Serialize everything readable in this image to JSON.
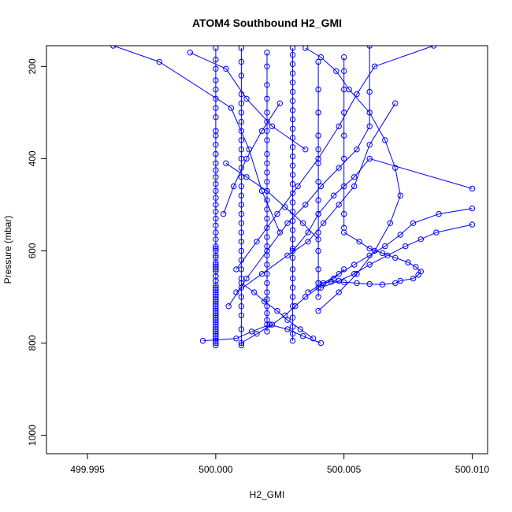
{
  "chart_data": {
    "type": "line",
    "title": "ATOM4 Southbound H2_GMI",
    "xlabel": "H2_GMI",
    "ylabel": "Pressure (mbar)",
    "xlim": [
      499.9934,
      500.0106
    ],
    "ylim": [
      1040,
      155
    ],
    "y_inverted": true,
    "xticks": [
      499.995,
      500.0,
      500.005,
      500.01
    ],
    "xtick_labels": [
      "499.995",
      "500.000",
      "500.005",
      "500.010"
    ],
    "yticks": [
      200,
      400,
      600,
      800,
      1000
    ],
    "ytick_labels": [
      "200",
      "400",
      "600",
      "800",
      "1000"
    ],
    "grid": false,
    "series_color": "#0000ff",
    "marker": "open-circle",
    "series": [
      {
        "x": [
          500.0,
          500.0,
          500.0,
          500.0,
          500.0,
          500.0,
          500.0,
          500.0,
          500.0,
          500.0,
          500.0,
          500.0,
          500.0,
          500.0,
          500.0,
          500.0,
          500.0,
          500.0,
          500.0,
          500.0,
          500.0,
          500.0,
          500.0,
          500.0,
          500.0,
          500.0,
          500.0,
          500.0,
          500.0,
          500.0,
          500.0,
          500.0,
          500.0,
          500.0,
          500.0,
          500.0,
          500.0,
          500.0,
          500.0,
          500.0,
          500.0,
          500.0,
          500.0,
          500.0,
          500.0,
          500.0,
          500.0,
          500.0,
          500.0,
          500.0,
          500.0,
          500.0,
          500.0,
          500.0,
          500.0,
          500.0,
          500.0,
          500.0,
          500.0,
          500.0,
          500.0,
          500.0,
          500.0,
          500.0,
          500.0
        ],
        "y": [
          160,
          185,
          205,
          230,
          250,
          270,
          290,
          310,
          340,
          350,
          370,
          390,
          410,
          425,
          440,
          455,
          470,
          485,
          500,
          515,
          530,
          545,
          560,
          575,
          590,
          600,
          615,
          630,
          640,
          655,
          665,
          680,
          690,
          700,
          710,
          720,
          730,
          740,
          750,
          760,
          770,
          780,
          790,
          800,
          805,
          795,
          785,
          775,
          765,
          755,
          745,
          735,
          725,
          715,
          705,
          695,
          685,
          675,
          665,
          655,
          645,
          635,
          625,
          610,
          595
        ]
      },
      {
        "x": [
          500.001,
          500.001,
          500.001,
          500.001,
          500.001,
          500.001,
          500.001,
          500.001,
          500.001,
          500.001,
          500.001,
          500.001,
          500.001,
          500.001,
          500.001,
          500.001,
          500.001,
          500.001,
          500.001,
          500.001,
          500.001,
          500.001,
          500.001,
          500.001,
          500.001,
          500.001,
          500.001,
          500.001,
          500.001,
          500.001
        ],
        "y": [
          160,
          190,
          220,
          260,
          280,
          300,
          320,
          340,
          360,
          380,
          400,
          420,
          440,
          460,
          480,
          500,
          520,
          540,
          560,
          580,
          600,
          620,
          640,
          660,
          680,
          700,
          720,
          740,
          770,
          805
        ]
      },
      {
        "x": [
          500.002,
          500.002,
          500.002,
          500.002,
          500.002,
          500.002,
          500.002,
          500.002,
          500.002,
          500.002,
          500.002,
          500.002,
          500.002,
          500.002,
          500.002,
          500.002,
          500.002,
          500.002,
          500.002,
          500.002,
          500.002,
          500.002,
          500.002,
          500.002,
          500.002,
          500.002,
          500.002,
          500.002,
          500.002,
          500.002
        ],
        "y": [
          170,
          200,
          240,
          270,
          300,
          320,
          340,
          360,
          390,
          410,
          430,
          450,
          470,
          490,
          510,
          530,
          550,
          570,
          590,
          610,
          630,
          650,
          670,
          690,
          705,
          720,
          735,
          750,
          760,
          775
        ]
      },
      {
        "x": [
          500.003,
          500.003,
          500.003,
          500.003,
          500.003,
          500.003,
          500.003,
          500.003,
          500.003,
          500.003,
          500.003,
          500.003,
          500.003,
          500.003,
          500.003,
          500.003,
          500.003,
          500.003,
          500.003,
          500.003,
          500.003,
          500.003,
          500.003,
          500.003,
          500.003,
          500.003,
          500.003,
          500.003,
          500.003,
          500.003,
          500.003,
          500.003,
          500.003
        ],
        "y": [
          160,
          175,
          195,
          215,
          235,
          255,
          275,
          295,
          315,
          335,
          355,
          375,
          395,
          415,
          435,
          455,
          475,
          495,
          515,
          535,
          555,
          575,
          595,
          615,
          640,
          660,
          680,
          700,
          720,
          745,
          765,
          780,
          795
        ]
      },
      {
        "x": [
          500.004,
          500.004,
          500.004,
          500.004,
          500.004,
          500.004,
          500.004,
          500.004,
          500.004,
          500.004,
          500.004,
          500.004,
          500.004,
          500.004
        ],
        "y": [
          190,
          250,
          300,
          350,
          380,
          410,
          450,
          490,
          520,
          560,
          600,
          640,
          670,
          700
        ]
      },
      {
        "x": [
          500.005,
          500.005,
          500.005,
          500.005,
          500.005,
          500.005,
          500.005,
          500.005,
          500.005
        ],
        "y": [
          180,
          210,
          250,
          300,
          350,
          400,
          460,
          520,
          550
        ]
      },
      {
        "x": [
          499.996,
          499.9978,
          500.0006,
          500.0013,
          500.0018,
          500.0025
        ],
        "y": [
          155,
          190,
          290,
          380,
          470,
          560
        ]
      },
      {
        "x": [
          499.999,
          500.0004,
          500.0012,
          500.0022,
          500.0035
        ],
        "y": [
          170,
          205,
          270,
          330,
          380
        ]
      },
      {
        "x": [
          500.006,
          500.006,
          500.006,
          500.0055,
          500.0048,
          500.0041,
          500.0035,
          500.0028,
          500.002,
          500.0012,
          500.0005
        ],
        "y": [
          155,
          255,
          330,
          380,
          420,
          460,
          500,
          540,
          600,
          660,
          720
        ]
      },
      {
        "x": [
          500.007,
          500.006,
          500.0054,
          500.0048,
          500.0042,
          500.0036,
          500.0028,
          500.0018,
          500.0008
        ],
        "y": [
          280,
          370,
          460,
          500,
          540,
          580,
          610,
          650,
          690
        ]
      },
      {
        "x": [
          500.01,
          500.006,
          500.0054,
          500.0046,
          500.004,
          500.0036,
          500.003
        ],
        "y": [
          465,
          400,
          440,
          480,
          520,
          560,
          600
        ]
      },
      {
        "x": [
          500.01,
          500.0087,
          500.0077,
          500.0072,
          500.0066,
          500.006,
          500.0054,
          500.0048,
          500.0042,
          500.0036
        ],
        "y": [
          508,
          520,
          540,
          565,
          590,
          610,
          630,
          650,
          670,
          690
        ]
      },
      {
        "x": [
          500.01,
          500.0086,
          500.008,
          500.0074,
          500.0067,
          500.006,
          500.0054,
          500.0048,
          500.0041
        ],
        "y": [
          543,
          560,
          575,
          590,
          610,
          630,
          650,
          665,
          680
        ]
      },
      {
        "x": [
          500.005,
          500.0056,
          500.006,
          500.0065,
          500.007,
          500.0075,
          500.0078,
          500.008,
          500.0079,
          500.0077,
          500.0072,
          500.007,
          500.0065,
          500.006,
          500.0055,
          500.005,
          500.0045,
          500.004
        ],
        "y": [
          560,
          580,
          595,
          605,
          615,
          625,
          635,
          645,
          652,
          660,
          665,
          670,
          673,
          672,
          670,
          668,
          667,
          670
        ]
      },
      {
        "x": [
          500.0085,
          500.0062,
          500.0055,
          500.0048,
          500.004,
          500.0032,
          500.0024,
          500.0016,
          500.0008
        ],
        "y": [
          155,
          200,
          260,
          330,
          400,
          460,
          520,
          580,
          640
        ]
      },
      {
        "x": [
          500.0035,
          500.0041,
          500.0047,
          500.0052,
          500.006,
          500.0066,
          500.007,
          500.0072,
          500.0068,
          500.0062,
          500.0055,
          500.0048,
          500.004
        ],
        "y": [
          160,
          180,
          210,
          250,
          300,
          360,
          420,
          480,
          540,
          600,
          650,
          690,
          730
        ]
      },
      {
        "x": [
          500.001,
          500.0016,
          500.0022,
          500.0027,
          500.0031,
          500.0035,
          500.004,
          500.0046,
          500.005
        ],
        "y": [
          800,
          780,
          760,
          740,
          720,
          700,
          680,
          660,
          640
        ]
      },
      {
        "x": [
          499.9995,
          500.0008,
          500.0014,
          500.0021,
          500.0028,
          500.0034,
          500.0041
        ],
        "y": [
          795,
          790,
          775,
          760,
          770,
          785,
          800
        ]
      },
      {
        "x": [
          500.0038,
          500.0033,
          500.0028,
          500.0024,
          500.0019,
          500.0015,
          500.001
        ],
        "y": [
          790,
          770,
          750,
          730,
          710,
          690,
          670
        ]
      },
      {
        "x": [
          500.0004,
          500.0012,
          500.002,
          500.0027,
          500.0034,
          500.004
        ],
        "y": [
          410,
          440,
          470,
          505,
          540,
          575
        ]
      },
      {
        "x": [
          500.0025,
          500.0018,
          500.0012,
          500.0007,
          500.0003
        ],
        "y": [
          280,
          340,
          400,
          460,
          520
        ]
      }
    ]
  }
}
